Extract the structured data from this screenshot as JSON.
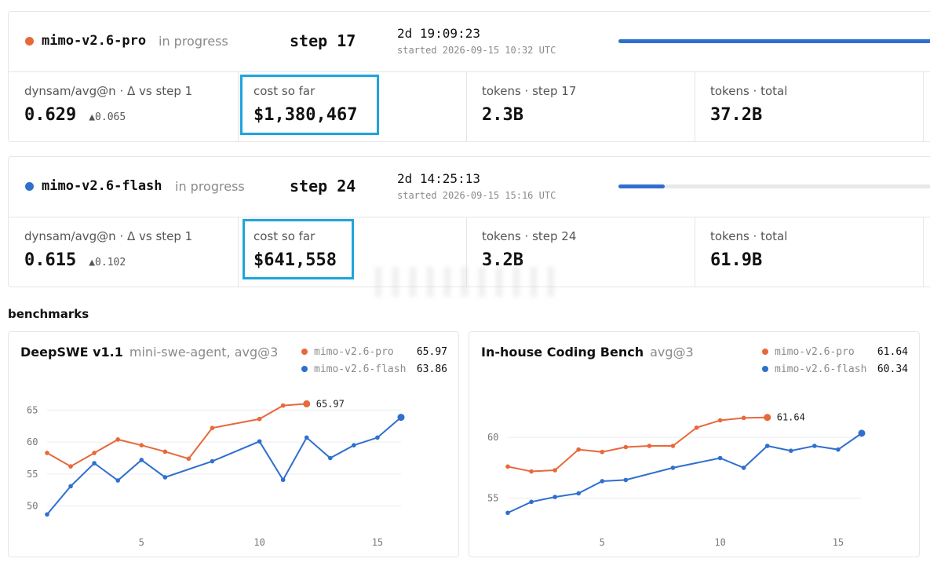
{
  "runs": [
    {
      "name": "mimo-v2.6-pro",
      "status": "in progress",
      "step": "step 17",
      "elapsed": "2d 19:09:23",
      "started": "started 2026-09-15 10:32 UTC",
      "color": "#e8683a",
      "progress": 1.0,
      "stats": {
        "score_label": "dynsam/avg@n · Δ vs step 1",
        "score_value": "0.629",
        "score_delta": "▲0.065",
        "cost_label": "cost so far",
        "cost_value": "$1,380,467",
        "tokens_step_label": "tokens · step 17",
        "tokens_step_value": "2.3B",
        "tokens_total_label": "tokens · total",
        "tokens_total_value": "37.2B"
      }
    },
    {
      "name": "mimo-v2.6-flash",
      "status": "in progress",
      "step": "step 24",
      "elapsed": "2d 14:25:13",
      "started": "started 2026-09-15 15:16 UTC",
      "color": "#2f6fce",
      "progress": 0.14,
      "stats": {
        "score_label": "dynsam/avg@n · Δ vs step 1",
        "score_value": "0.615",
        "score_delta": "▲0.102",
        "cost_label": "cost so far",
        "cost_value": "$641,558",
        "tokens_step_label": "tokens · step 24",
        "tokens_step_value": "3.2B",
        "tokens_total_label": "tokens · total",
        "tokens_total_value": "61.9B"
      }
    }
  ],
  "benchmarks_title": "benchmarks",
  "chart_data": [
    {
      "type": "line",
      "title": "DeepSWE v1.1",
      "subtitle": "mini-swe-agent, avg@3",
      "ylim": [
        48,
        67
      ],
      "xlim": [
        1,
        16
      ],
      "yticks": [
        50,
        55,
        60,
        65
      ],
      "xticks": [
        5,
        10,
        15
      ],
      "grid": true,
      "series": [
        {
          "name": "mimo-v2.6-pro",
          "color": "#e8683a",
          "legend_value": "65.97",
          "end_label": "65.97",
          "x": [
            1,
            2,
            3,
            4,
            5,
            6,
            7,
            8,
            10,
            11,
            12
          ],
          "y": [
            58.3,
            56.2,
            58.3,
            60.4,
            59.5,
            58.5,
            57.4,
            62.2,
            63.6,
            65.7,
            65.97
          ]
        },
        {
          "name": "mimo-v2.6-flash",
          "color": "#2f6fce",
          "legend_value": "63.86",
          "x": [
            1,
            2,
            3,
            4,
            5,
            6,
            8,
            10,
            11,
            12,
            13,
            14,
            15,
            16
          ],
          "y": [
            48.7,
            53.1,
            56.7,
            54.0,
            57.2,
            54.5,
            57.0,
            60.1,
            54.1,
            60.7,
            57.5,
            59.5,
            60.7,
            63.86
          ]
        }
      ]
    },
    {
      "type": "line",
      "title": "In-house Coding Bench",
      "subtitle": "avg@3",
      "ylim": [
        53.3,
        63.3
      ],
      "xlim": [
        1,
        16
      ],
      "yticks": [
        55,
        60
      ],
      "xticks": [
        5,
        10,
        15
      ],
      "grid": true,
      "series": [
        {
          "name": "mimo-v2.6-pro",
          "color": "#e8683a",
          "legend_value": "61.64",
          "end_label": "61.64",
          "x": [
            1,
            2,
            3,
            4,
            5,
            6,
            7,
            8,
            9,
            10,
            11,
            12
          ],
          "y": [
            57.6,
            57.2,
            57.3,
            59.0,
            58.8,
            59.2,
            59.3,
            59.3,
            60.8,
            61.4,
            61.6,
            61.64
          ]
        },
        {
          "name": "mimo-v2.6-flash",
          "color": "#2f6fce",
          "legend_value": "60.34",
          "x": [
            1,
            2,
            3,
            4,
            5,
            6,
            8,
            10,
            11,
            12,
            13,
            14,
            15,
            16
          ],
          "y": [
            53.8,
            54.7,
            55.1,
            55.4,
            56.4,
            56.5,
            57.5,
            58.3,
            57.5,
            59.3,
            58.9,
            59.3,
            59.0,
            60.34
          ]
        }
      ]
    }
  ]
}
